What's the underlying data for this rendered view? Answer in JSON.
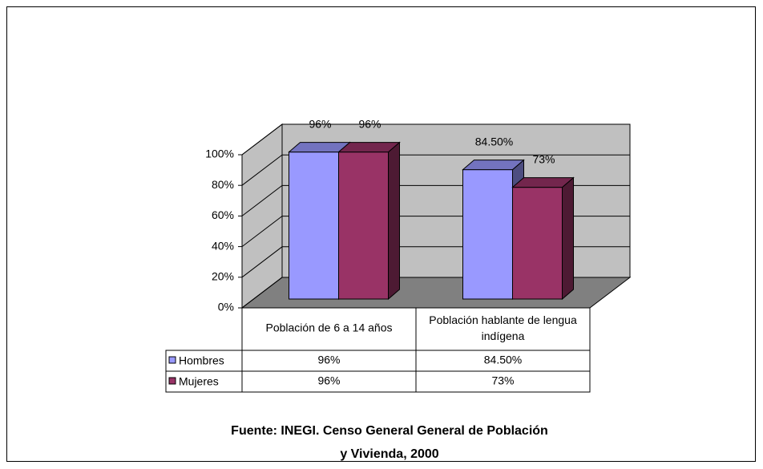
{
  "chart_data": {
    "type": "bar3d",
    "categories": [
      "Población de 6 a 14 años",
      "Población hablante de lengua indígena"
    ],
    "series": [
      {
        "name": "Hombres",
        "color": "#9999ff",
        "values": [
          96,
          84.5
        ],
        "value_labels": [
          "96%",
          "84.50%"
        ]
      },
      {
        "name": "Mujeres",
        "color": "#993366",
        "values": [
          96,
          73
        ],
        "value_labels": [
          "96%",
          "73%"
        ]
      }
    ],
    "ylim": [
      0,
      100
    ],
    "yticks": [
      {
        "value": 0,
        "label": "0%"
      },
      {
        "value": 20,
        "label": "20%"
      },
      {
        "value": 40,
        "label": "40%"
      },
      {
        "value": 60,
        "label": "60%"
      },
      {
        "value": 80,
        "label": "80%"
      },
      {
        "value": 100,
        "label": "100%"
      }
    ],
    "grid": true,
    "data_table": true,
    "source": "Fuente: INEGI. Censo General General de Población y Vivienda, 2000"
  }
}
